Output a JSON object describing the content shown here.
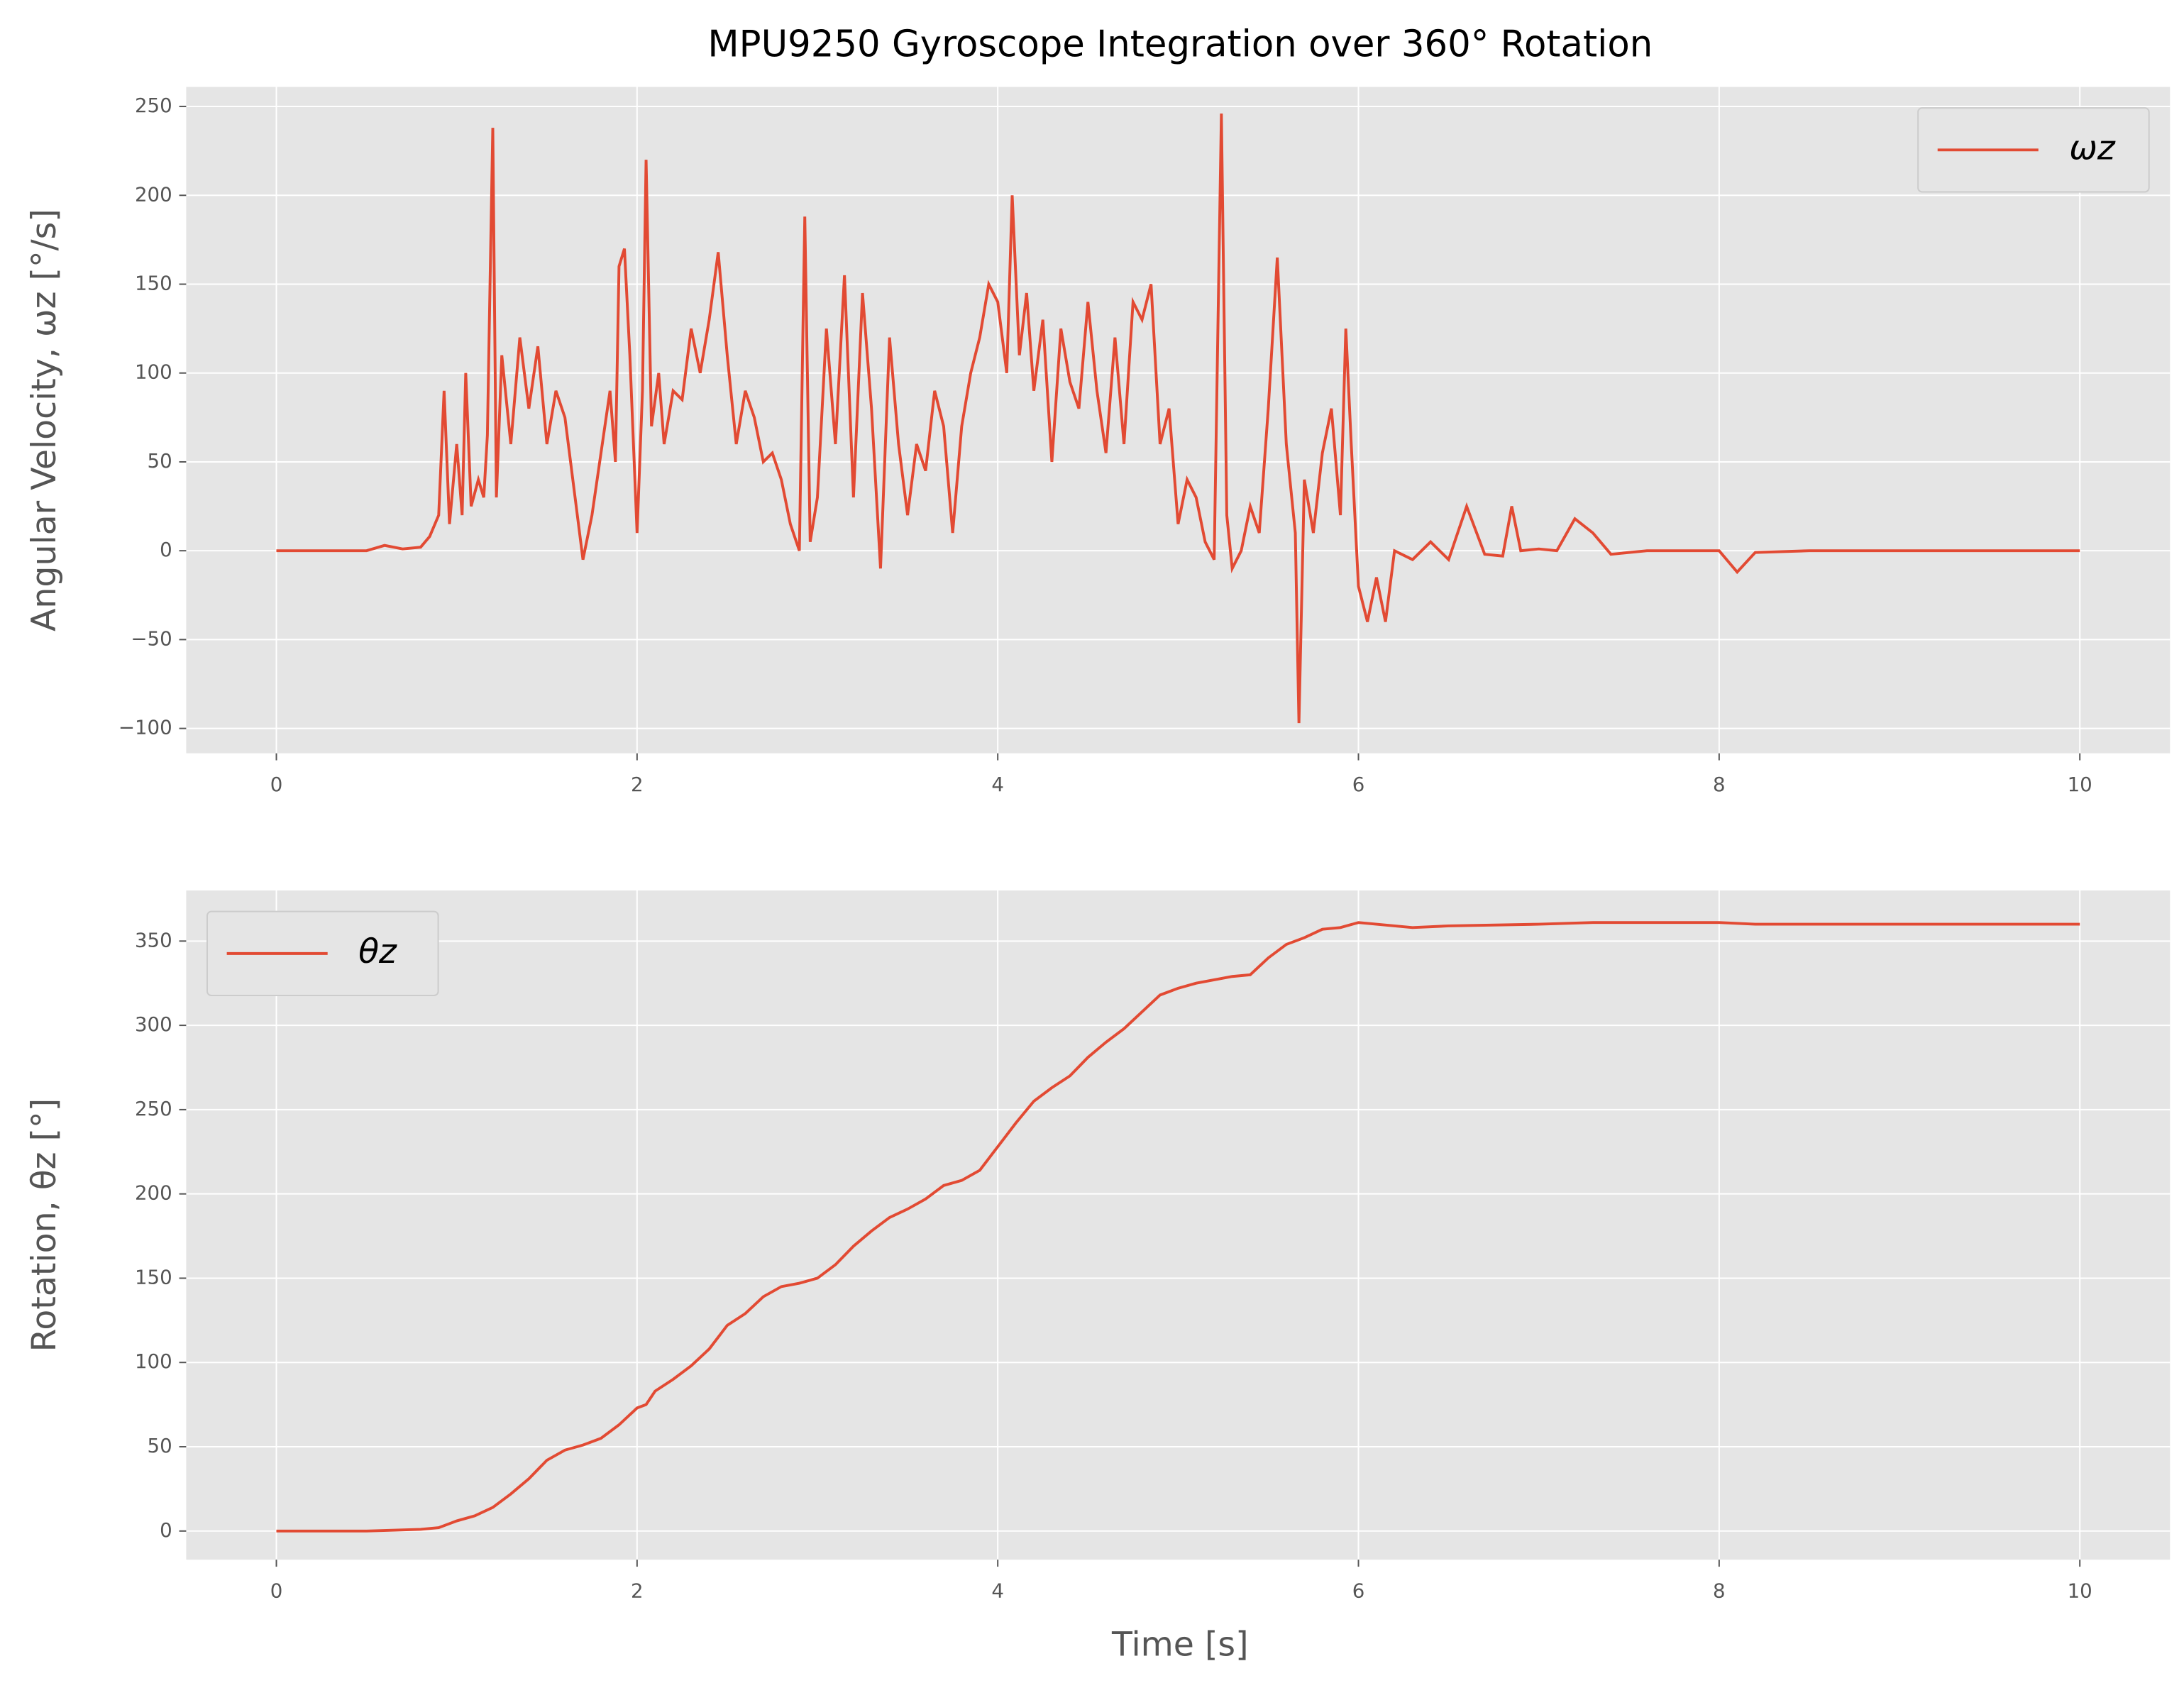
{
  "chart_data": [
    {
      "type": "line",
      "title": "MPU9250 Gyroscope Integration over 360° Rotation",
      "ylabel": "Angular Velocity, ωz [°/s]",
      "x": [
        0,
        0.5,
        0.6,
        0.7,
        0.8,
        0.85,
        0.9,
        0.93,
        0.96,
        1.0,
        1.03,
        1.05,
        1.08,
        1.12,
        1.15,
        1.17,
        1.2,
        1.22,
        1.25,
        1.3,
        1.35,
        1.4,
        1.45,
        1.5,
        1.55,
        1.6,
        1.65,
        1.7,
        1.75,
        1.8,
        1.85,
        1.88,
        1.9,
        1.93,
        1.96,
        2.0,
        2.03,
        2.05,
        2.08,
        2.12,
        2.15,
        2.2,
        2.25,
        2.3,
        2.35,
        2.4,
        2.45,
        2.5,
        2.55,
        2.6,
        2.65,
        2.7,
        2.75,
        2.8,
        2.85,
        2.9,
        2.93,
        2.96,
        3.0,
        3.05,
        3.1,
        3.15,
        3.2,
        3.25,
        3.3,
        3.35,
        3.4,
        3.45,
        3.5,
        3.55,
        3.6,
        3.65,
        3.7,
        3.75,
        3.8,
        3.85,
        3.9,
        3.95,
        4.0,
        4.05,
        4.08,
        4.12,
        4.16,
        4.2,
        4.25,
        4.3,
        4.35,
        4.4,
        4.45,
        4.5,
        4.55,
        4.6,
        4.65,
        4.7,
        4.75,
        4.8,
        4.85,
        4.9,
        4.95,
        5.0,
        5.05,
        5.1,
        5.15,
        5.2,
        5.24,
        5.27,
        5.3,
        5.35,
        5.4,
        5.45,
        5.5,
        5.55,
        5.6,
        5.65,
        5.67,
        5.7,
        5.75,
        5.8,
        5.85,
        5.9,
        5.93,
        5.96,
        6.0,
        6.05,
        6.1,
        6.15,
        6.2,
        6.3,
        6.4,
        6.5,
        6.6,
        6.7,
        6.8,
        6.85,
        6.9,
        7.0,
        7.1,
        7.2,
        7.3,
        7.4,
        7.6,
        7.8,
        8.0,
        8.1,
        8.2,
        8.5,
        9,
        9.5,
        10
      ],
      "series": [
        {
          "name": "ωz",
          "color": "#e24a33",
          "values": [
            0,
            0,
            3,
            1,
            2,
            8,
            20,
            90,
            15,
            60,
            20,
            100,
            25,
            40,
            30,
            65,
            238,
            30,
            110,
            60,
            120,
            80,
            115,
            60,
            90,
            75,
            35,
            -5,
            20,
            55,
            90,
            50,
            160,
            170,
            110,
            10,
            90,
            220,
            70,
            100,
            60,
            90,
            85,
            125,
            100,
            130,
            168,
            110,
            60,
            90,
            75,
            50,
            55,
            40,
            15,
            0,
            188,
            5,
            30,
            125,
            60,
            155,
            30,
            145,
            80,
            -10,
            120,
            60,
            20,
            60,
            45,
            90,
            70,
            10,
            70,
            100,
            120,
            150,
            140,
            100,
            200,
            110,
            145,
            90,
            130,
            50,
            125,
            95,
            80,
            140,
            90,
            55,
            120,
            60,
            140,
            130,
            150,
            60,
            80,
            15,
            40,
            30,
            5,
            -5,
            246,
            20,
            -10,
            0,
            25,
            10,
            80,
            165,
            60,
            10,
            -97,
            40,
            10,
            55,
            80,
            20,
            125,
            60,
            -20,
            -40,
            -15,
            -40,
            0,
            -5,
            5,
            -5,
            25,
            -2,
            -3,
            25,
            0,
            1,
            0,
            18,
            10,
            -2,
            0,
            0,
            0,
            -12,
            -1,
            0,
            0,
            0,
            0
          ]
        }
      ],
      "xlim": [
        -0.5,
        10.5
      ],
      "ylim": [
        -114,
        261
      ],
      "xticks": [
        0,
        2,
        4,
        6,
        8,
        10
      ],
      "yticks": [
        {
          "value": -100,
          "label": "−100"
        },
        {
          "value": -50,
          "label": "−50"
        },
        0,
        50,
        100,
        150,
        200,
        250
      ],
      "grid": true,
      "legend": "upper right"
    },
    {
      "type": "line",
      "ylabel": "Rotation, θz [°]",
      "xlabel": "Time [s]",
      "x": [
        0,
        0.5,
        0.8,
        0.9,
        1.0,
        1.1,
        1.2,
        1.3,
        1.4,
        1.5,
        1.6,
        1.7,
        1.8,
        1.9,
        2.0,
        2.05,
        2.1,
        2.2,
        2.3,
        2.4,
        2.5,
        2.6,
        2.7,
        2.8,
        2.9,
        3.0,
        3.1,
        3.2,
        3.3,
        3.4,
        3.5,
        3.6,
        3.7,
        3.8,
        3.9,
        4.0,
        4.1,
        4.2,
        4.3,
        4.4,
        4.5,
        4.6,
        4.7,
        4.8,
        4.9,
        5.0,
        5.1,
        5.2,
        5.3,
        5.4,
        5.5,
        5.6,
        5.7,
        5.8,
        5.9,
        6.0,
        6.1,
        6.3,
        6.5,
        7.0,
        7.3,
        8.0,
        8.2,
        9,
        10
      ],
      "series": [
        {
          "name": "θz",
          "color": "#e24a33",
          "values": [
            0,
            0,
            1,
            2,
            6,
            9,
            14,
            22,
            31,
            42,
            48,
            51,
            55,
            63,
            73,
            75,
            83,
            90,
            98,
            108,
            122,
            129,
            139,
            145,
            147,
            150,
            158,
            169,
            178,
            186,
            191,
            197,
            205,
            208,
            214,
            228,
            242,
            255,
            263,
            270,
            281,
            290,
            298,
            308,
            318,
            322,
            325,
            327,
            329,
            330,
            340,
            348,
            352,
            357,
            358,
            361,
            360,
            358,
            359,
            360,
            361,
            361,
            360,
            360,
            360
          ]
        }
      ],
      "xlim": [
        -0.5,
        10.5
      ],
      "ylim": [
        -17,
        380
      ],
      "xticks": [
        0,
        2,
        4,
        6,
        8,
        10
      ],
      "yticks": [
        0,
        50,
        100,
        150,
        200,
        250,
        300,
        350
      ],
      "grid": true,
      "legend": "upper left"
    }
  ]
}
